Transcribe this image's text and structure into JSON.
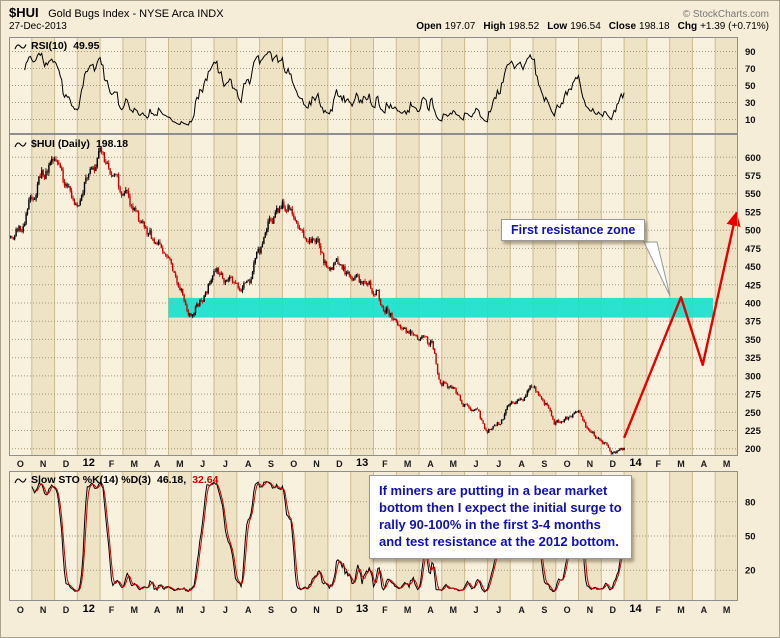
{
  "header": {
    "symbol": "$HUI",
    "name": "Gold Bugs Index - NYSE Arca INDX",
    "credit": "© StockCharts.com",
    "date": "27-Dec-2013",
    "quote": {
      "items": [
        {
          "label": "Open",
          "value": "197.07"
        },
        {
          "label": "High",
          "value": "198.52"
        },
        {
          "label": "Low",
          "value": "196.54"
        },
        {
          "label": "Close",
          "value": "198.18"
        },
        {
          "label": "Chg",
          "value": "+1.39 (+0.71%)"
        }
      ]
    }
  },
  "panels": {
    "rsi": {
      "legend": "RSI(10)",
      "value": "49.95"
    },
    "price": {
      "legend": "$HUI (Daily)",
      "value": "198.18"
    },
    "sto": {
      "legend": "Slow STO %K(14) %D(3)",
      "value_k": "46.18,",
      "value_d": "32.64"
    }
  },
  "annotations": {
    "resistance_label": "First resistance zone",
    "forecast_text": "If miners are putting in a bear market bottom then I expect the initial surge to rally 90-100% in the first 3-4 months and test resistance at the 2012 bottom."
  },
  "chart_data": {
    "type": "candlestick",
    "symbol": "$HUI",
    "timeframe": "Daily",
    "x_axis": {
      "start": "Oct-2011",
      "end": "May-2014",
      "data_end": "27-Dec-2013",
      "month_labels": [
        "O",
        "N",
        "D",
        "12",
        "F",
        "M",
        "A",
        "M",
        "J",
        "J",
        "A",
        "S",
        "O",
        "N",
        "D",
        "13",
        "F",
        "M",
        "A",
        "M",
        "J",
        "J",
        "A",
        "S",
        "O",
        "N",
        "D",
        "14",
        "F",
        "M",
        "A",
        "M"
      ]
    },
    "price_panel": {
      "y_ticks": [
        600,
        575,
        550,
        525,
        500,
        475,
        450,
        425,
        400,
        375,
        350,
        325,
        300,
        275,
        250,
        225,
        200
      ],
      "start_close": 490,
      "semi_monthly_closes": [
        500,
        545,
        580,
        600,
        560,
        530,
        575,
        600,
        580,
        555,
        530,
        500,
        480,
        455,
        420,
        385,
        405,
        445,
        435,
        420,
        430,
        470,
        510,
        535,
        525,
        495,
        480,
        450,
        455,
        435,
        430,
        420,
        395,
        375,
        360,
        355,
        345,
        290,
        280,
        260,
        250,
        225,
        235,
        260,
        270,
        285,
        260,
        235,
        240,
        250,
        225,
        210,
        195,
        198
      ],
      "last_close": 198.18
    },
    "rsi_panel": {
      "period": 10,
      "last": 49.95,
      "y_ticks": [
        90,
        70,
        50,
        30,
        10
      ]
    },
    "sto_panel": {
      "k_period": 14,
      "d_period": 3,
      "last_k": 46.18,
      "last_d": 32.64,
      "y_ticks": [
        80,
        50,
        20
      ]
    },
    "resistance_zone": {
      "label": "First resistance zone",
      "price_low": 380,
      "price_high": 407,
      "start_month_index": 7,
      "end_month_index": 30.9,
      "start_month": "May-2012",
      "color": "#1FE0CE"
    },
    "projection_arrow": {
      "color": "#E60000",
      "points_month_price": [
        [
          27.0,
          215
        ],
        [
          29.5,
          408
        ],
        [
          30.45,
          315
        ],
        [
          31.9,
          520
        ]
      ]
    }
  }
}
